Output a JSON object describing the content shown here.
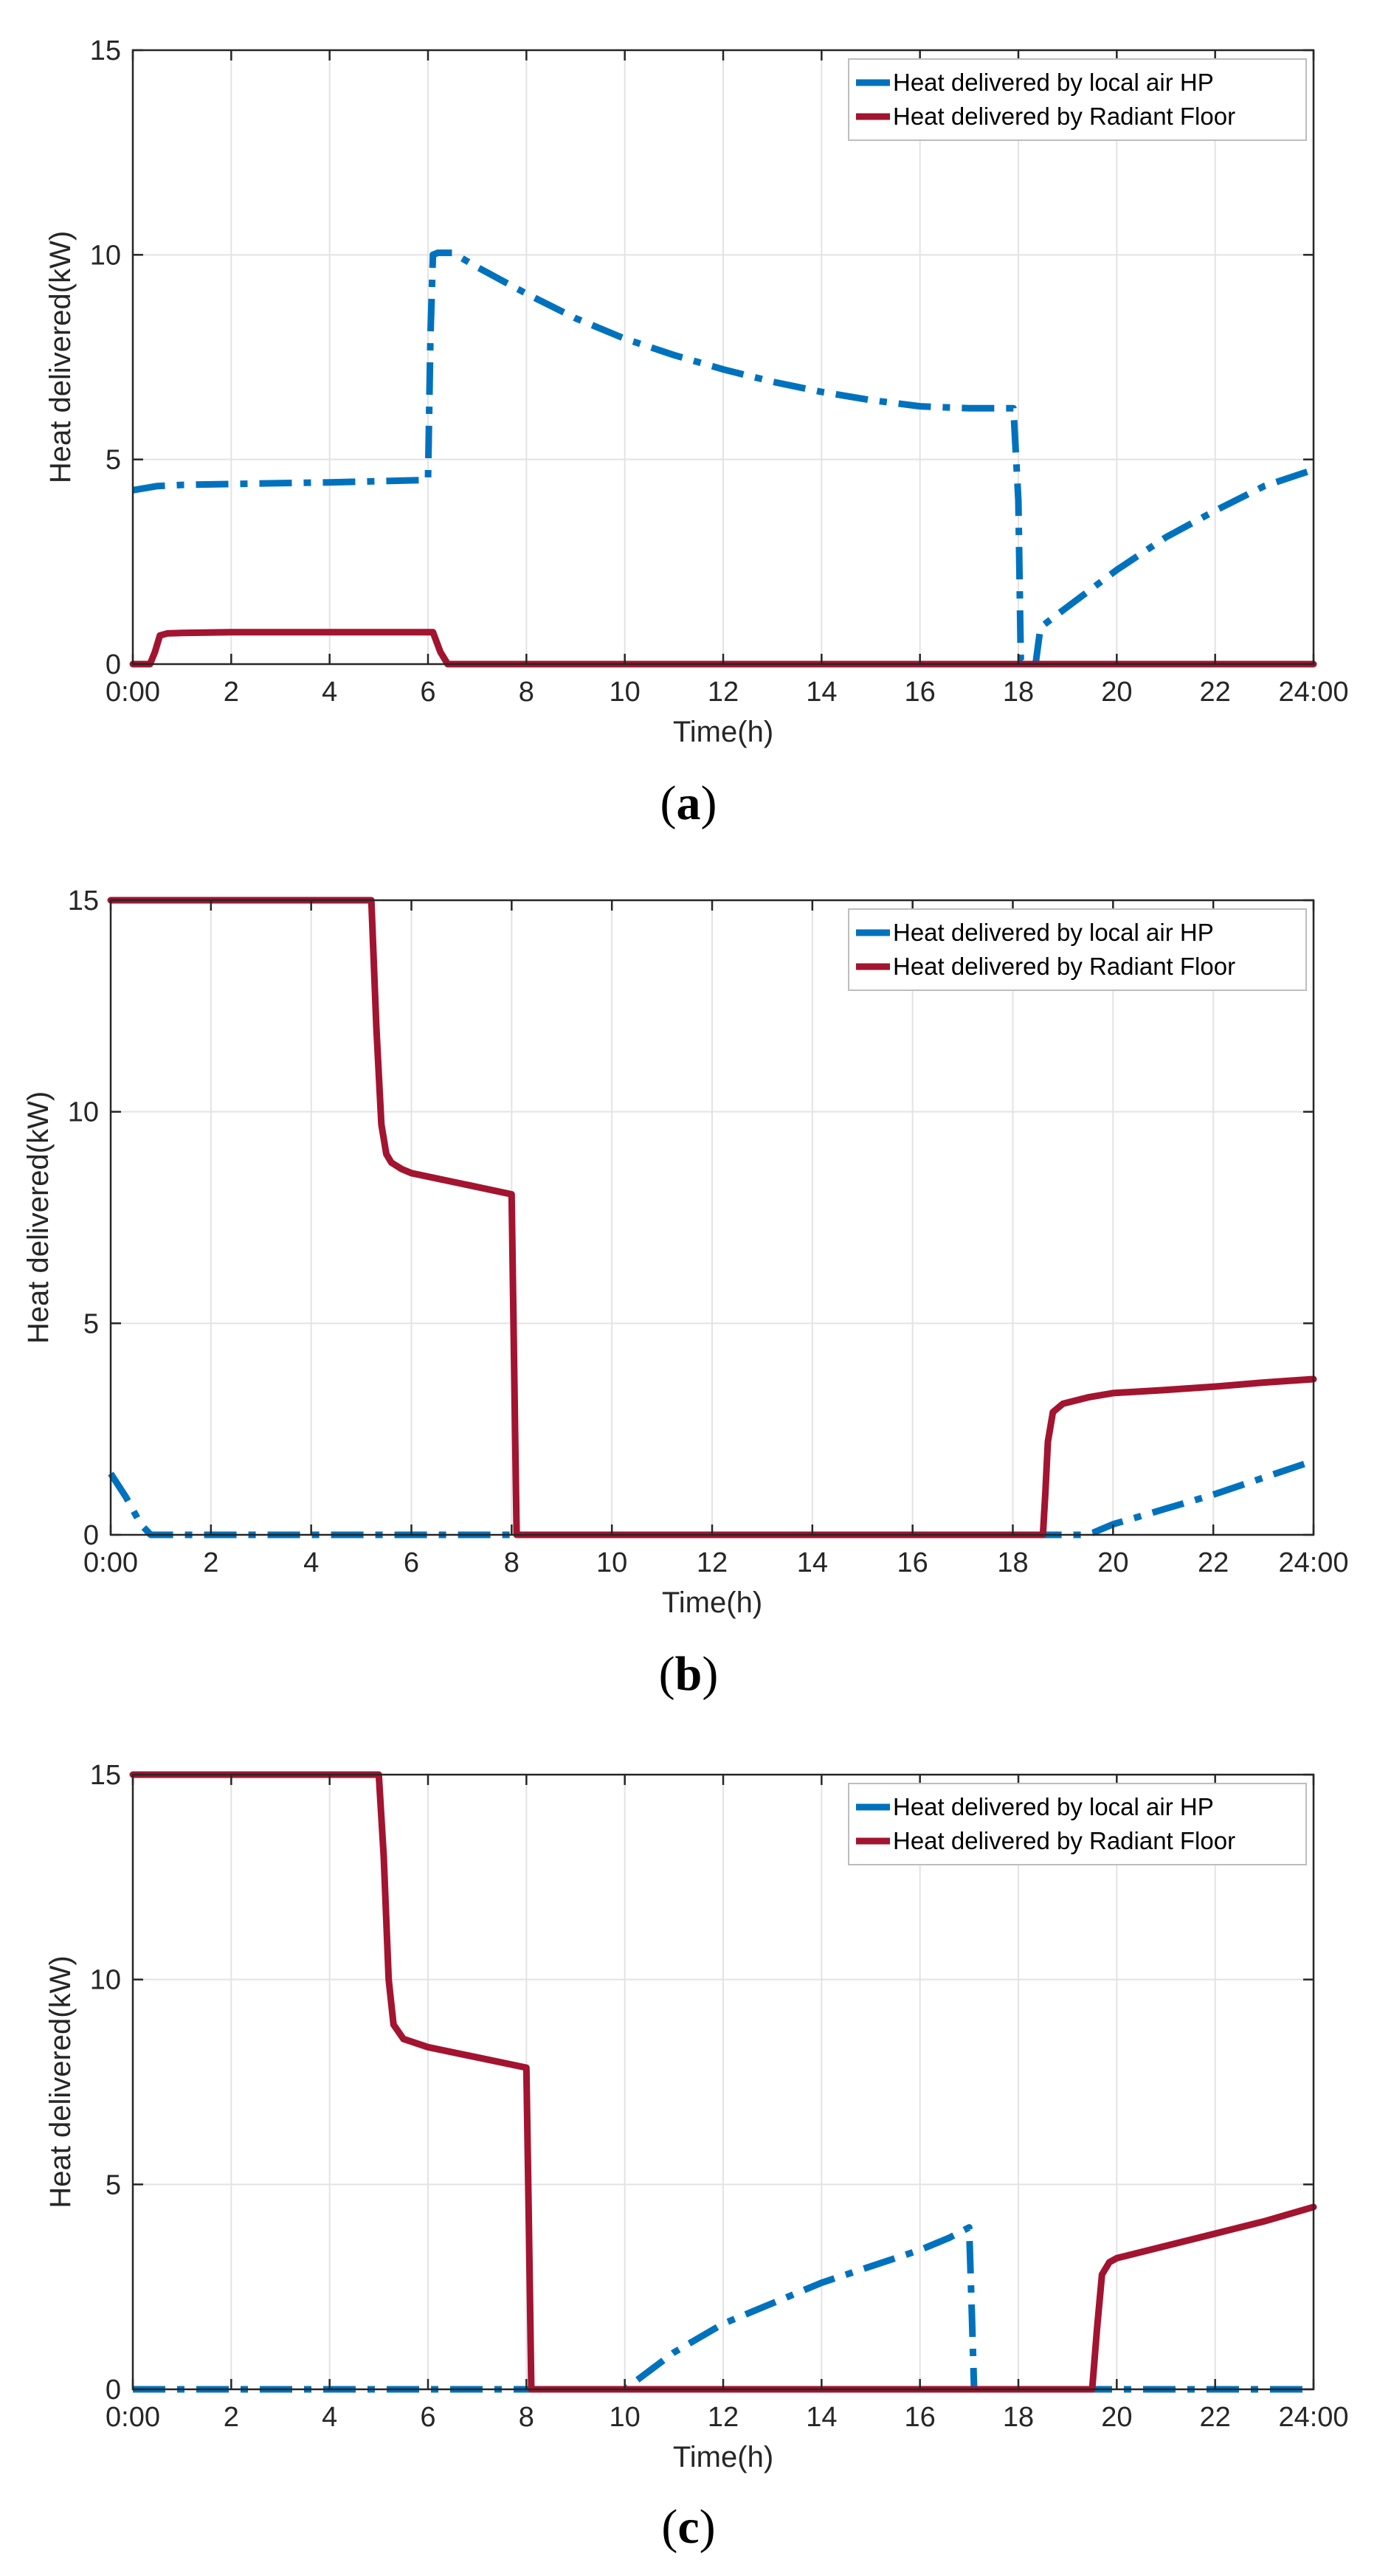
{
  "colors": {
    "hp": "#0072BD",
    "floor": "#A2142F",
    "grid": "#e3e3e3",
    "axis": "#262626"
  },
  "chart_data": [
    {
      "type": "line",
      "id": "a",
      "caption_open": "(",
      "caption_letter": "a",
      "caption_close": ")",
      "xlabel": "Time(h)",
      "ylabel": "Heat delivered(kW)",
      "xlim": [
        0,
        24
      ],
      "ylim": [
        0,
        15
      ],
      "xticks": [
        0,
        2,
        4,
        6,
        8,
        10,
        12,
        14,
        16,
        18,
        20,
        22,
        24
      ],
      "xticklabels": [
        "0:00",
        "2",
        "4",
        "6",
        "8",
        "10",
        "12",
        "14",
        "16",
        "18",
        "20",
        "22",
        "24:00"
      ],
      "yticks": [
        0,
        5,
        10,
        15
      ],
      "yticklabels": [
        "0",
        "5",
        "10",
        "15"
      ],
      "legend_position": "top-right",
      "series": [
        {
          "name": "Heat delivered by local air HP",
          "style": "dashdot",
          "color_key": "hp",
          "x": [
            0,
            0.5,
            1,
            2,
            3,
            4,
            5,
            6,
            6.05,
            6.1,
            6.2,
            6.5,
            7,
            8,
            9,
            10,
            11,
            12,
            13,
            14,
            15,
            16,
            17,
            17.5,
            17.9,
            18.0,
            18.05,
            18.2,
            18.35,
            18.45,
            19,
            20,
            21,
            22,
            23,
            24
          ],
          "y": [
            4.25,
            4.35,
            4.38,
            4.4,
            4.42,
            4.44,
            4.47,
            4.5,
            8.0,
            10.0,
            10.05,
            10.05,
            9.7,
            9.05,
            8.45,
            7.95,
            7.55,
            7.2,
            6.9,
            6.65,
            6.45,
            6.3,
            6.25,
            6.25,
            6.25,
            4.0,
            0.1,
            0.0,
            0.0,
            0.9,
            1.4,
            2.3,
            3.1,
            3.75,
            4.35,
            4.75
          ]
        },
        {
          "name": "Heat delivered by Radiant Floor",
          "style": "solid",
          "color_key": "floor",
          "x": [
            0,
            0.35,
            0.45,
            0.55,
            0.7,
            1,
            2,
            3,
            4,
            5,
            6,
            6.1,
            6.25,
            6.4,
            8,
            12,
            16,
            20,
            24
          ],
          "y": [
            0,
            0,
            0.3,
            0.7,
            0.75,
            0.76,
            0.78,
            0.78,
            0.78,
            0.78,
            0.78,
            0.78,
            0.3,
            0,
            0,
            0,
            0,
            0,
            0
          ]
        }
      ]
    },
    {
      "type": "line",
      "id": "b",
      "caption_open": "(",
      "caption_letter": "b",
      "caption_close": ")",
      "xlabel": "Time(h)",
      "ylabel": "Heat delivered(kW)",
      "xlim": [
        0,
        24
      ],
      "ylim": [
        0,
        15
      ],
      "xticks": [
        0,
        2,
        4,
        6,
        8,
        10,
        12,
        14,
        16,
        18,
        20,
        22,
        24
      ],
      "xticklabels": [
        "0:00",
        "2",
        "4",
        "6",
        "8",
        "10",
        "12",
        "14",
        "16",
        "18",
        "20",
        "22",
        "24:00"
      ],
      "yticks": [
        0,
        5,
        10,
        15
      ],
      "yticklabels": [
        "0",
        "5",
        "10",
        "15"
      ],
      "legend_position": "top-right",
      "series": [
        {
          "name": "Heat delivered by local air HP",
          "style": "dashdot",
          "color_key": "hp",
          "x": [
            0,
            0.3,
            0.6,
            0.8,
            2,
            6,
            10,
            14,
            18,
            19.4,
            19.6,
            20,
            21,
            22,
            23,
            24
          ],
          "y": [
            1.45,
            0.9,
            0.25,
            0.0,
            0,
            0,
            0,
            0,
            0,
            0.0,
            0.05,
            0.25,
            0.6,
            0.95,
            1.35,
            1.75
          ]
        },
        {
          "name": "Heat delivered by Radiant Floor",
          "style": "solid",
          "color_key": "floor",
          "x": [
            0,
            2,
            4,
            5.2,
            5.3,
            5.4,
            5.5,
            5.6,
            5.8,
            6,
            7,
            8.0,
            8.05,
            8.1,
            12,
            16,
            18.5,
            18.6,
            18.65,
            18.7,
            18.8,
            19,
            19.5,
            20,
            21,
            22,
            23,
            24
          ],
          "y": [
            15,
            15,
            15,
            15,
            12,
            9.7,
            9.0,
            8.8,
            8.65,
            8.55,
            8.3,
            8.05,
            4.0,
            0,
            0,
            0,
            0,
            0,
            1.0,
            2.2,
            2.9,
            3.1,
            3.25,
            3.35,
            3.42,
            3.5,
            3.6,
            3.68
          ]
        }
      ]
    },
    {
      "type": "line",
      "id": "c",
      "caption_open": "(",
      "caption_letter": "c",
      "caption_close": ")",
      "xlabel": "Time(h)",
      "ylabel": "Heat delivered(kW)",
      "xlim": [
        0,
        24
      ],
      "ylim": [
        0,
        15
      ],
      "xticks": [
        0,
        2,
        4,
        6,
        8,
        10,
        12,
        14,
        16,
        18,
        20,
        22,
        24
      ],
      "xticklabels": [
        "0:00",
        "2",
        "4",
        "6",
        "8",
        "10",
        "12",
        "14",
        "16",
        "18",
        "20",
        "22",
        "24:00"
      ],
      "yticks": [
        0,
        5,
        10,
        15
      ],
      "yticklabels": [
        "0",
        "5",
        "10",
        "15"
      ],
      "legend_position": "top-right",
      "series": [
        {
          "name": "Heat delivered by local air HP",
          "style": "dashdot",
          "color_key": "hp",
          "x": [
            0,
            4,
            8,
            10,
            10.5,
            11,
            12,
            13,
            14,
            15,
            16,
            16.6,
            17.0,
            17.05,
            17.1,
            17.2,
            18,
            20,
            22,
            24
          ],
          "y": [
            0,
            0,
            0,
            0,
            0.45,
            0.9,
            1.6,
            2.1,
            2.6,
            3.0,
            3.4,
            3.7,
            3.95,
            2.0,
            0.0,
            0,
            0,
            0,
            0,
            0
          ]
        },
        {
          "name": "Heat delivered by Radiant Floor",
          "style": "solid",
          "color_key": "floor",
          "x": [
            0,
            2,
            4,
            5.0,
            5.1,
            5.2,
            5.3,
            5.5,
            6,
            7,
            8.0,
            8.05,
            8.1,
            12,
            16,
            19.5,
            19.6,
            19.7,
            19.85,
            20,
            21,
            22,
            23,
            24
          ],
          "y": [
            15,
            15,
            15,
            15,
            13,
            10.0,
            8.9,
            8.55,
            8.35,
            8.1,
            7.85,
            4.0,
            0,
            0,
            0,
            0,
            1.5,
            2.8,
            3.1,
            3.2,
            3.5,
            3.8,
            4.1,
            4.45
          ]
        }
      ]
    }
  ]
}
